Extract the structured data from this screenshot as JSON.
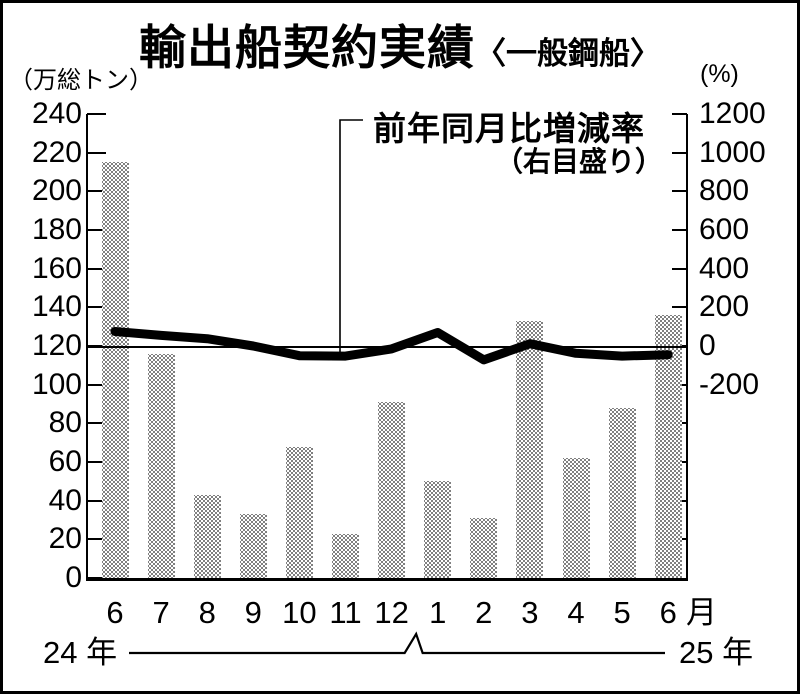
{
  "title": {
    "main": "輸出船契約実績",
    "sub": "〈一般鋼船〉"
  },
  "left_axis": {
    "unit": "（万総トン）",
    "ticks": [
      240,
      220,
      200,
      180,
      160,
      140,
      120,
      100,
      80,
      60,
      40,
      20,
      0
    ]
  },
  "right_axis": {
    "unit": "(%)",
    "labeled_ticks": [
      1200,
      1000,
      800,
      600,
      400,
      200,
      0,
      -200
    ]
  },
  "annotation": {
    "line1": "前年同月比増減率",
    "line2": "（右目盛り）"
  },
  "x_axis": {
    "months": [
      "6",
      "7",
      "8",
      "9",
      "10",
      "11",
      "12",
      "1",
      "2",
      "3",
      "4",
      "5",
      "6"
    ],
    "month_suffix": "月",
    "year_left": "24 年",
    "year_right": "25 年"
  },
  "colors": {
    "ink": "#000000",
    "bar_dot": "#7e7e7e",
    "background": "#ffffff"
  },
  "chart_data": {
    "type": "bar",
    "subtype": "bar-plus-line-dual-axis",
    "title": "輸出船契約実績〈一般鋼船〉",
    "categories": [
      "6",
      "7",
      "8",
      "9",
      "10",
      "11",
      "12",
      "1",
      "2",
      "3",
      "4",
      "5",
      "6"
    ],
    "series": [
      {
        "name": "契約実績（万総トン・棒グラフ・左目盛り）",
        "type": "bar",
        "axis": "left",
        "values": [
          215,
          116,
          43,
          33,
          68,
          23,
          91,
          50,
          31,
          133,
          62,
          88,
          136
        ]
      },
      {
        "name": "前年同月比増減率（%・折れ線・右目盛り）",
        "type": "line",
        "axis": "right",
        "values": [
          75,
          55,
          38,
          0,
          -50,
          -52,
          -15,
          70,
          -72,
          12,
          -38,
          -52,
          -45
        ]
      }
    ],
    "left_ylabel": "万総トン",
    "right_ylabel": "%",
    "left_ylim": [
      0,
      240
    ],
    "left_tick_step": 20,
    "right_labeled_range": [
      -200,
      1200
    ],
    "right_tick_step": 200,
    "grid": "zero-percent-line-only",
    "legend_position": "annotation-arrow-to-line",
    "x_period": "2024年6月〜2025年6月"
  }
}
